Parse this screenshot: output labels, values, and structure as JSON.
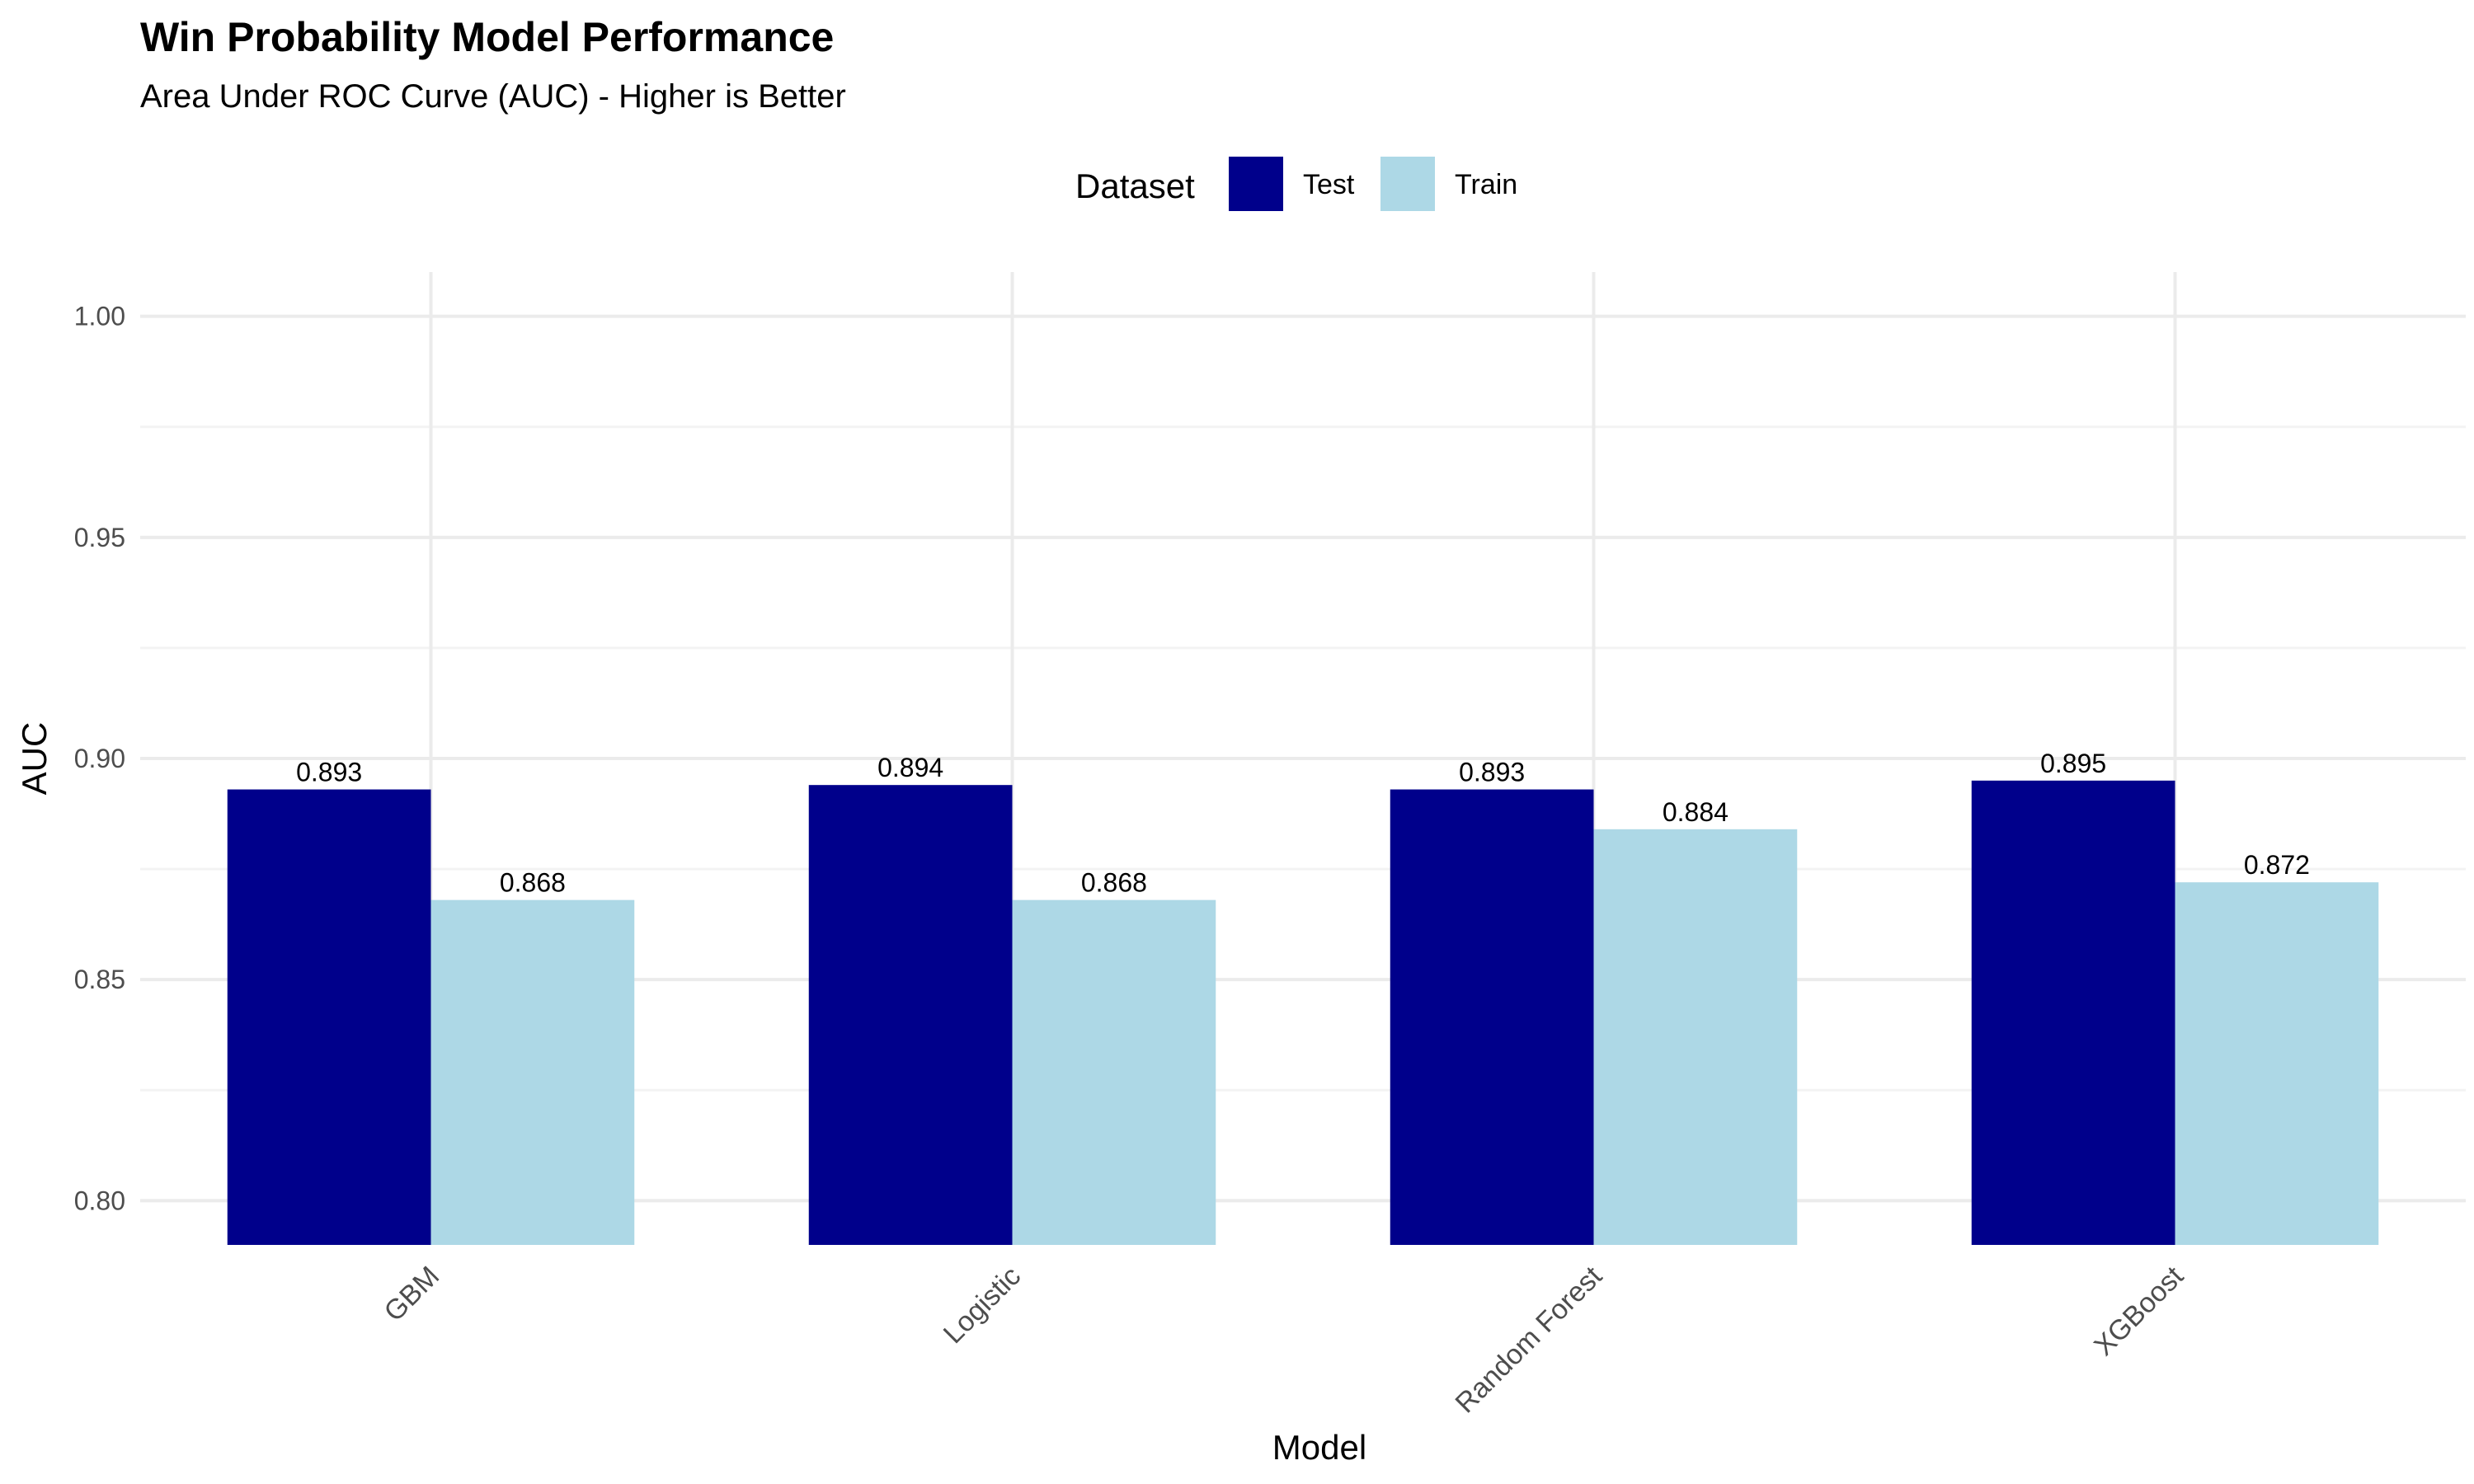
{
  "chart_data": {
    "type": "bar",
    "title": "Win Probability Model Performance",
    "subtitle": "Area Under ROC Curve (AUC) - Higher is Better",
    "xlabel": "Model",
    "ylabel": "AUC",
    "categories": [
      "GBM",
      "Logistic",
      "Random Forest",
      "XGBoost"
    ],
    "series": [
      {
        "name": "Test",
        "color": "#00008b",
        "values": [
          0.893,
          0.894,
          0.893,
          0.895
        ],
        "labels": [
          "0.893",
          "0.894",
          "0.893",
          "0.895"
        ]
      },
      {
        "name": "Train",
        "color": "#add8e6",
        "values": [
          0.868,
          0.868,
          0.884,
          0.872
        ],
        "labels": [
          "0.868",
          "0.868",
          "0.884",
          "0.872"
        ]
      }
    ],
    "legend": {
      "title": "Dataset",
      "position": "top"
    },
    "ylim": [
      0.79,
      1.01
    ],
    "y_ticks": [
      0.8,
      0.85,
      0.9,
      0.95,
      1.0
    ],
    "y_tick_labels": [
      "0.80",
      "0.85",
      "0.90",
      "0.95",
      "1.00"
    ],
    "bar_baseline": 0.79,
    "grid": true
  }
}
